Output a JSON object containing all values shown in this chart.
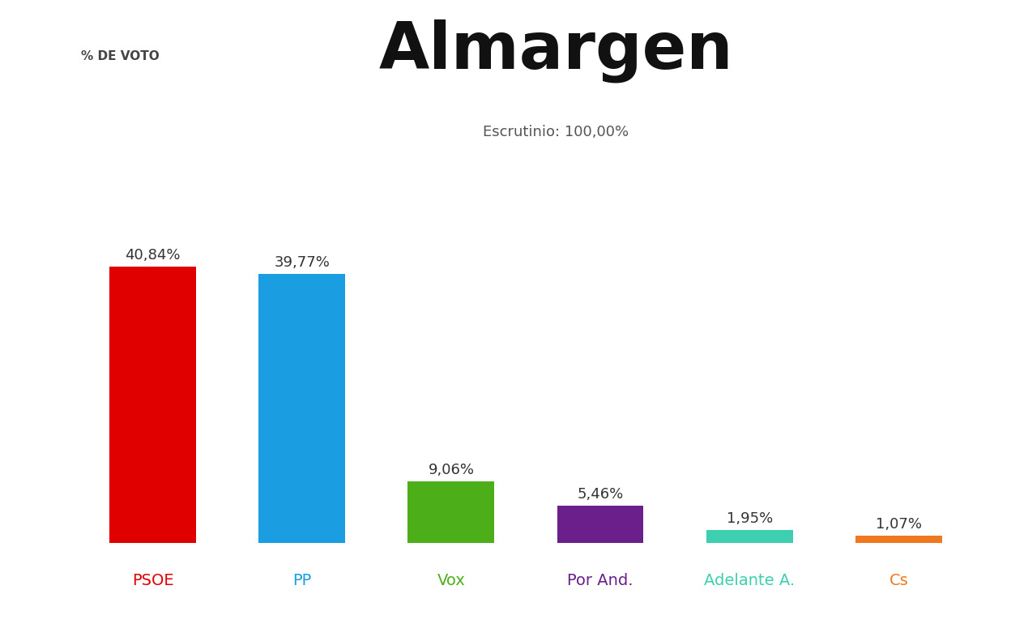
{
  "title": "Almargen",
  "subtitle_label": "Escrutinio:",
  "subtitle_value": "100,00%",
  "ylabel": "% DE VOTO",
  "parties": [
    "PSOE",
    "PP",
    "Vox",
    "Por And.",
    "Adelante A.",
    "Cs"
  ],
  "values": [
    40.84,
    39.77,
    9.06,
    5.46,
    1.95,
    1.07
  ],
  "labels": [
    "40,84%",
    "39,77%",
    "9,06%",
    "5,46%",
    "1,95%",
    "1,07%"
  ],
  "colors": [
    "#e00000",
    "#1a9de1",
    "#4caf1a",
    "#6a1f8a",
    "#3ecfb0",
    "#f07820"
  ],
  "party_colors": [
    "#e00000",
    "#1a9de1",
    "#4caf1a",
    "#6a1f8a",
    "#3ecfb0",
    "#f07820"
  ],
  "background_color": "#ffffff",
  "ylim": [
    0,
    48
  ],
  "bar_width": 0.58,
  "title_fontsize": 58,
  "subtitle_fontsize": 13,
  "label_fontsize": 13,
  "party_fontsize": 14,
  "ylabel_fontsize": 11
}
